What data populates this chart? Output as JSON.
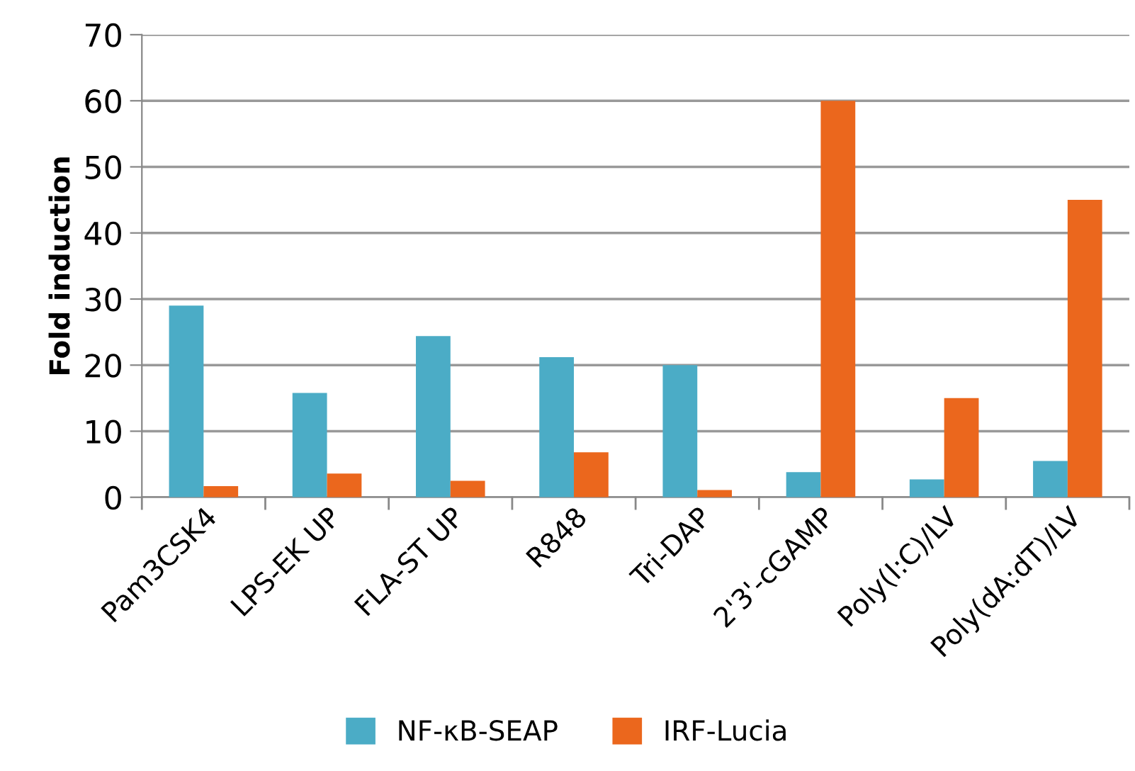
{
  "chart_data": {
    "type": "bar",
    "ylabel": "Fold induction",
    "categories": [
      "Pam3CSK4",
      "LPS-EK UP",
      "FLA-ST UP",
      "R848",
      "Tri-DAP",
      "2'3'-cGAMP",
      "Poly(I:C)/LV",
      "Poly(dA:dT)/LV"
    ],
    "series": [
      {
        "name": "NF-κB-SEAP",
        "color": "#4bacc6",
        "values": [
          29,
          15.8,
          24.4,
          21.2,
          20,
          3.8,
          2.7,
          5.5
        ]
      },
      {
        "name": "IRF-Lucia",
        "color": "#eb671d",
        "values": [
          1.7,
          3.6,
          2.5,
          6.8,
          1.1,
          60,
          15,
          45
        ]
      }
    ],
    "ylim": [
      0,
      70
    ],
    "yticks": [
      0,
      10,
      20,
      30,
      40,
      50,
      60,
      70
    ],
    "grid": "y",
    "legend": "bottom"
  }
}
